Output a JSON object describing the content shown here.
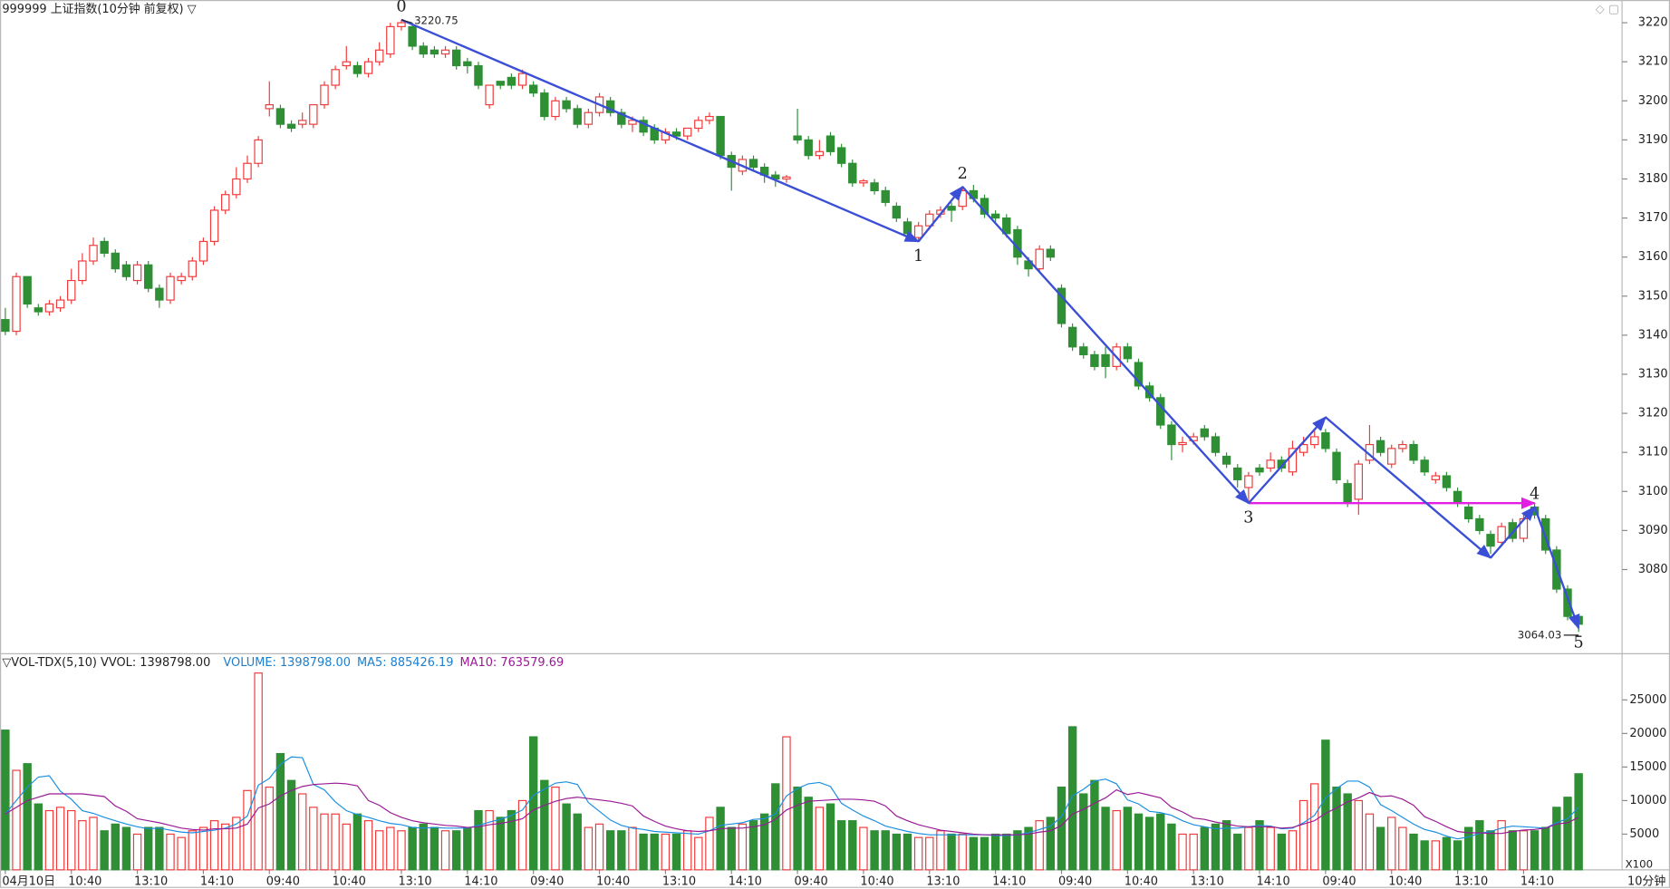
{
  "chart_data": {
    "type": "candlestick",
    "title": "999999 上证指数(10分钟 前复权) ▽",
    "categories": [
      "04月10日",
      null,
      null,
      null,
      null,
      null,
      "10:40",
      null,
      null,
      null,
      null,
      null,
      "13:10",
      null,
      null,
      null,
      null,
      null,
      "14:10",
      null,
      null,
      null,
      null,
      null,
      "09:40",
      null,
      null,
      null,
      null,
      null,
      "10:40",
      null,
      null,
      null,
      null,
      null,
      "13:10",
      null,
      null,
      null,
      null,
      null,
      "14:10",
      null,
      null,
      null,
      null,
      null,
      "09:40",
      null,
      null,
      null,
      null,
      null,
      "10:40",
      null,
      null,
      null,
      null,
      null,
      "13:10",
      null,
      null,
      null,
      null,
      null,
      "14:10",
      null,
      null,
      null,
      null,
      null,
      "09:40",
      null,
      null,
      null,
      null,
      null,
      "10:40",
      null,
      null,
      null,
      null,
      null,
      "13:10",
      null,
      null,
      null,
      null,
      null,
      "14:10",
      null,
      null,
      null,
      null,
      null,
      "09:40",
      null,
      null,
      null,
      null,
      null,
      "10:40",
      null,
      null,
      null,
      null,
      null,
      "13:10",
      null,
      null,
      null,
      null,
      null,
      "14:10",
      null,
      null,
      null,
      null,
      null,
      "09:40",
      null,
      null,
      null,
      null,
      null,
      "10:40",
      null,
      null,
      null,
      null,
      null,
      "13:10",
      null,
      null,
      null,
      null,
      null,
      "14:10",
      null,
      null,
      null,
      null,
      null
    ],
    "open": [
      3144,
      3141,
      3155,
      3147,
      3146,
      3147,
      3149,
      3154,
      3159,
      3164,
      3161,
      3158,
      3154,
      3158,
      3152,
      3149,
      3154,
      3155,
      3159,
      3164,
      3172,
      3176,
      3180,
      3184,
      3198,
      3198,
      3194,
      3194,
      3194,
      3199,
      3204,
      3209,
      3209,
      3207,
      3210,
      3212,
      3219,
      3219,
      3214,
      3213,
      3212,
      3213,
      3210,
      3209,
      3199,
      3205,
      3206,
      3204,
      3204,
      3202,
      3196,
      3200,
      3198,
      3194,
      3197,
      3200,
      3197,
      3194,
      3195,
      3193,
      3190,
      3192,
      3191,
      3193,
      3195,
      3196,
      3186,
      3182,
      3185,
      3183,
      3181,
      3180,
      3191,
      3190,
      3186,
      3191,
      3188,
      3184,
      3179,
      3179,
      3177,
      3173,
      3169,
      3165,
      3168,
      3171,
      3173,
      3173,
      3177,
      3175,
      3171,
      3170,
      3167,
      3159,
      3157,
      3162,
      3152,
      3142,
      3137,
      3135,
      3135,
      3132,
      3137,
      3133,
      3127,
      3124,
      3117,
      3112,
      3113,
      3116,
      3114,
      3109,
      3106,
      3101,
      3106,
      3106,
      3108,
      3105,
      3110,
      3112,
      3115,
      3110,
      3102,
      3098,
      3108,
      3113,
      3107,
      3111,
      3112,
      3108,
      3103,
      3104,
      3100,
      3096,
      3093,
      3089,
      3087,
      3092,
      3088,
      3096,
      3093,
      3085,
      3075,
      3068
    ],
    "high": [
      3147,
      3156,
      3155,
      3148,
      3149,
      3150,
      3157,
      3161,
      3165,
      3165,
      3162,
      3159,
      3159,
      3159,
      3153,
      3156,
      3156,
      3160,
      3165,
      3173,
      3177,
      3183,
      3186,
      3191,
      3205,
      3199,
      3195,
      3197,
      3199,
      3205,
      3209,
      3214,
      3210,
      3211,
      3215,
      3220,
      3220.75,
      3220,
      3215,
      3214,
      3214,
      3214,
      3211,
      3210,
      3204,
      3205,
      3207,
      3208,
      3205,
      3203,
      3201,
      3201,
      3199,
      3198,
      3202,
      3201,
      3198,
      3196,
      3196,
      3194,
      3193,
      3193,
      3193,
      3196,
      3197,
      3196,
      3187,
      3186,
      3186,
      3184,
      3182,
      3181,
      3198,
      3191,
      3190,
      3192,
      3189,
      3185,
      3180,
      3180,
      3178,
      3174,
      3170,
      3169,
      3172,
      3173,
      3174,
      3178,
      3178.5,
      3176,
      3172,
      3171,
      3168,
      3160,
      3163,
      3163,
      3153,
      3143,
      3138,
      3136,
      3137,
      3138,
      3138,
      3134,
      3128,
      3125,
      3118,
      3114,
      3115,
      3117,
      3115,
      3110,
      3107,
      3105,
      3107,
      3110,
      3109,
      3113,
      3114,
      3116,
      3116,
      3111,
      3103,
      3108,
      3117,
      3114,
      3112,
      3113,
      3113,
      3109,
      3105,
      3105,
      3101,
      3097,
      3094,
      3090,
      3092,
      3093,
      3094,
      3097,
      3094,
      3086,
      3076,
      3068
    ],
    "low": [
      3140,
      3140,
      3147,
      3145,
      3145,
      3146,
      3148,
      3153,
      3158,
      3160,
      3156,
      3154,
      3153,
      3151,
      3147,
      3148,
      3153,
      3154,
      3158,
      3163,
      3171,
      3175,
      3179,
      3183,
      3196,
      3193,
      3192,
      3193,
      3193,
      3198,
      3203,
      3208,
      3206,
      3206,
      3209,
      3211,
      3218,
      3213,
      3211,
      3211,
      3211,
      3208,
      3207,
      3203,
      3198,
      3203,
      3203,
      3203,
      3201,
      3195,
      3195,
      3197,
      3193,
      3193,
      3196,
      3196,
      3193,
      3192,
      3191,
      3189,
      3189,
      3190,
      3190,
      3192,
      3194,
      3185,
      3177,
      3181,
      3182,
      3179,
      3178,
      3179,
      3189,
      3185,
      3185,
      3186,
      3183,
      3178,
      3178,
      3176,
      3173,
      3169,
      3165,
      3164,
      3167,
      3170,
      3169,
      3172,
      3174,
      3170,
      3169,
      3165,
      3158,
      3155,
      3156,
      3159,
      3142,
      3136,
      3134,
      3131,
      3129,
      3131,
      3133,
      3126,
      3123,
      3116,
      3108,
      3110,
      3112,
      3113,
      3109,
      3106,
      3101,
      3097,
      3104,
      3105,
      3105,
      3104,
      3109,
      3111,
      3110,
      3102,
      3096,
      3094,
      3107,
      3109,
      3106,
      3110,
      3107,
      3104,
      3102,
      3100,
      3096,
      3092,
      3089,
      3084,
      3086,
      3087,
      3087,
      3093,
      3084,
      3074,
      3067,
      3064.03
    ],
    "close": [
      3141,
      3155,
      3148,
      3146,
      3148,
      3149,
      3154,
      3159,
      3163,
      3161,
      3157,
      3155,
      3158,
      3152,
      3149,
      3155,
      3155,
      3159,
      3164,
      3172,
      3176,
      3180,
      3184,
      3190,
      3199,
      3194,
      3193,
      3195,
      3199,
      3204,
      3208,
      3210,
      3207,
      3210,
      3213,
      3219,
      3220,
      3214,
      3212,
      3212,
      3213,
      3209,
      3209,
      3204,
      3204,
      3204,
      3204,
      3207,
      3202,
      3196,
      3200,
      3198,
      3194,
      3197,
      3201,
      3197,
      3194,
      3195,
      3192,
      3190,
      3192,
      3191,
      3193,
      3195,
      3196,
      3186,
      3183,
      3185,
      3183,
      3181,
      3180,
      3180.5,
      3190,
      3186,
      3187,
      3187,
      3184,
      3179,
      3179.5,
      3177,
      3174,
      3170,
      3166,
      3168,
      3171,
      3172,
      3172,
      3177,
      3175,
      3171,
      3170,
      3166,
      3160,
      3157,
      3162,
      3160,
      3143,
      3137,
      3135,
      3132,
      3132,
      3137,
      3134,
      3127,
      3124,
      3117,
      3112,
      3112.5,
      3114,
      3114,
      3110,
      3107,
      3103,
      3104,
      3105,
      3108,
      3106,
      3111,
      3112,
      3114,
      3111,
      3103,
      3097,
      3107,
      3112,
      3110,
      3111,
      3112,
      3108,
      3105,
      3104,
      3101,
      3097,
      3093,
      3090,
      3086,
      3091,
      3088,
      3093,
      3094,
      3085,
      3075,
      3068,
      3066
    ],
    "ylim": [
      3059,
      3225
    ],
    "yticks": [
      3080,
      3090,
      3100,
      3110,
      3120,
      3130,
      3140,
      3150,
      3160,
      3170,
      3180,
      3190,
      3200,
      3210,
      3220
    ],
    "up_color": "#ee3a3a",
    "down_color": "#2f8f35",
    "max_label": {
      "value": 3220.75,
      "label": "3220.75"
    },
    "min_label": {
      "value": 3064.03,
      "label": "3064.03"
    },
    "waves": {
      "color": "#3b4fd6",
      "x": [
        36,
        83,
        87,
        113,
        120,
        135,
        139,
        143
      ],
      "y": [
        3220.75,
        3164,
        3178,
        3097,
        3119,
        3083,
        3096,
        3065
      ],
      "labels": [
        "0",
        "1",
        "2",
        "3",
        null,
        null,
        "4",
        "5"
      ]
    },
    "level_line": {
      "color": "#e21fe2",
      "value": 3097,
      "x": [
        113,
        139
      ]
    },
    "period_label": "10分钟",
    "volume": {
      "type": "bar",
      "header": [
        {
          "text": "▽VOL-TDX(5,10) VVOL: 1398798.00",
          "color": "#222222"
        },
        {
          "text": "VOLUME: 1398798.00",
          "color": "#1a7fd0"
        },
        {
          "text": "MA5: 885426.19",
          "color": "#1a7fd0"
        },
        {
          "text": "MA10: 763579.69",
          "color": "#9a1a94"
        }
      ],
      "unit_label": "X100",
      "ylim": [
        0,
        29500
      ],
      "yticks": [
        5000,
        10000,
        15000,
        20000,
        25000
      ],
      "values": [
        20500,
        14500,
        15500,
        9500,
        8500,
        9000,
        8500,
        7000,
        7500,
        5500,
        6500,
        6000,
        5000,
        6000,
        6000,
        5000,
        4500,
        5500,
        6000,
        7000,
        6500,
        7500,
        11500,
        29000,
        12000,
        17000,
        13000,
        11000,
        9000,
        8000,
        8000,
        6500,
        8000,
        7000,
        5500,
        6000,
        5500,
        6000,
        6500,
        6000,
        5500,
        5500,
        6000,
        8500,
        8500,
        7500,
        8500,
        10000,
        19500,
        13000,
        12000,
        9500,
        8000,
        6000,
        6500,
        5500,
        5500,
        6000,
        5000,
        5000,
        5000,
        5000,
        5500,
        4500,
        7500,
        9000,
        6000,
        6500,
        7000,
        8000,
        12500,
        19500,
        12000,
        10500,
        9000,
        9500,
        7000,
        7000,
        6000,
        5500,
        5500,
        5000,
        5000,
        4500,
        4500,
        5500,
        5000,
        5000,
        4500,
        4500,
        5000,
        5000,
        5500,
        6000,
        7000,
        7500,
        12000,
        21000,
        11000,
        13000,
        9000,
        8500,
        9000,
        8000,
        7500,
        8000,
        6500,
        5000,
        5000,
        6000,
        6500,
        7000,
        5000,
        6000,
        7000,
        6000,
        5000,
        5500,
        10000,
        12500,
        19000,
        12000,
        11000,
        10000,
        8000,
        6000,
        7500,
        6000,
        5000,
        4000,
        4000,
        4500,
        4000,
        6000,
        7000,
        5500,
        7000,
        5500,
        5500,
        5500,
        6000,
        9000,
        10500,
        14000
      ],
      "series": [
        {
          "color": "#1a8fe0",
          "values": [
            8000,
            10000,
            12000,
            13500,
            13700,
            11400,
            10200,
            8500,
            8100,
            7500,
            7000,
            6500,
            6100,
            5800,
            5900,
            5600,
            5300,
            5200,
            5400,
            5600,
            5900,
            6500,
            7700,
            12300,
            13300,
            15400,
            16500,
            16400,
            12400,
            11600,
            9800,
            8500,
            7900,
            7500,
            7000,
            6600,
            6400,
            6000,
            5900,
            6000,
            5900,
            5900,
            5900,
            6300,
            6800,
            7200,
            7800,
            8600,
            10800,
            11700,
            12600,
            12800,
            12400,
            9700,
            8400,
            7100,
            6300,
            5900,
            5700,
            5400,
            5300,
            5200,
            5100,
            5000,
            5500,
            6300,
            6500,
            6700,
            7200,
            7300,
            8000,
            10700,
            11800,
            12500,
            12700,
            12100,
            9600,
            8600,
            7700,
            7000,
            6200,
            5800,
            5400,
            5100,
            4900,
            4900,
            4900,
            4900,
            4900,
            4900,
            4800,
            4800,
            4900,
            5200,
            5700,
            6200,
            7600,
            10700,
            11700,
            12900,
            13200,
            12500,
            10100,
            9500,
            8400,
            8200,
            7800,
            7000,
            6400,
            6100,
            5800,
            5900,
            5900,
            6100,
            6300,
            6200,
            5800,
            5900,
            6700,
            7800,
            10400,
            11800,
            12900,
            12900,
            12000,
            9400,
            8500,
            7500,
            6500,
            5700,
            5300,
            4700,
            4300,
            4600,
            5100,
            5400,
            5900,
            6200,
            6100,
            6000,
            5900,
            6700,
            7300,
            9000
          ]
        },
        {
          "color": "#9a1a94",
          "values": [
            8000,
            9000,
            10000,
            10500,
            11000,
            11000,
            11000,
            11000,
            10800,
            10600,
            9200,
            8400,
            7300,
            7000,
            6700,
            6300,
            5900,
            5700,
            5600,
            5800,
            5800,
            5900,
            6500,
            8900,
            9500,
            10700,
            11500,
            12100,
            12400,
            12500,
            12600,
            12500,
            12200,
            10000,
            9300,
            8200,
            7500,
            7000,
            6700,
            6500,
            6300,
            6200,
            6000,
            6100,
            6400,
            6600,
            6900,
            7300,
            8600,
            9300,
            9900,
            10300,
            10500,
            10300,
            10100,
            9900,
            9600,
            9200,
            7700,
            6900,
            6200,
            5800,
            5500,
            5400,
            5500,
            5800,
            5900,
            5900,
            6100,
            6400,
            7200,
            8600,
            9300,
            9900,
            10000,
            10100,
            10200,
            10200,
            10100,
            9900,
            9200,
            7700,
            7000,
            6400,
            6000,
            5600,
            5400,
            5200,
            5000,
            4900,
            4900,
            4900,
            4900,
            5000,
            5300,
            5500,
            6300,
            8000,
            8700,
            9600,
            10400,
            11600,
            10900,
            11200,
            10800,
            10400,
            9000,
            8300,
            7400,
            7200,
            6800,
            6500,
            6200,
            6100,
            6100,
            6100,
            5900,
            6000,
            6500,
            7000,
            8100,
            8900,
            9800,
            10400,
            11200,
            10600,
            10700,
            10200,
            9300,
            7600,
            6900,
            6100,
            5400,
            5200,
            5200,
            5100,
            5100,
            5400,
            5600,
            5700,
            5900,
            6500,
            6700,
            7500
          ]
        }
      ]
    }
  }
}
